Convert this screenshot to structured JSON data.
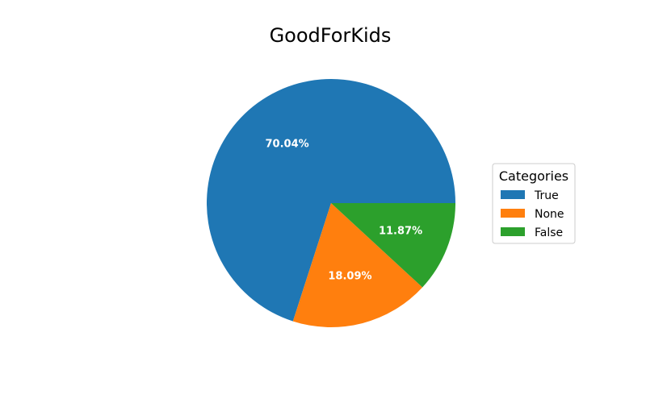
{
  "chart_data": {
    "type": "pie",
    "title": "GoodForKids",
    "categories": [
      "True",
      "None",
      "False"
    ],
    "values": [
      70.04,
      18.09,
      11.87
    ],
    "value_labels": [
      "70.04%",
      "18.09%",
      "11.87%"
    ],
    "colors": [
      "#1f77b4",
      "#ff7f0e",
      "#2ca02c"
    ],
    "start_angle_deg": 0,
    "direction": "counterclockwise",
    "legend": {
      "title": "Categories",
      "placement": "right",
      "entries": [
        "True",
        "None",
        "False"
      ]
    }
  }
}
